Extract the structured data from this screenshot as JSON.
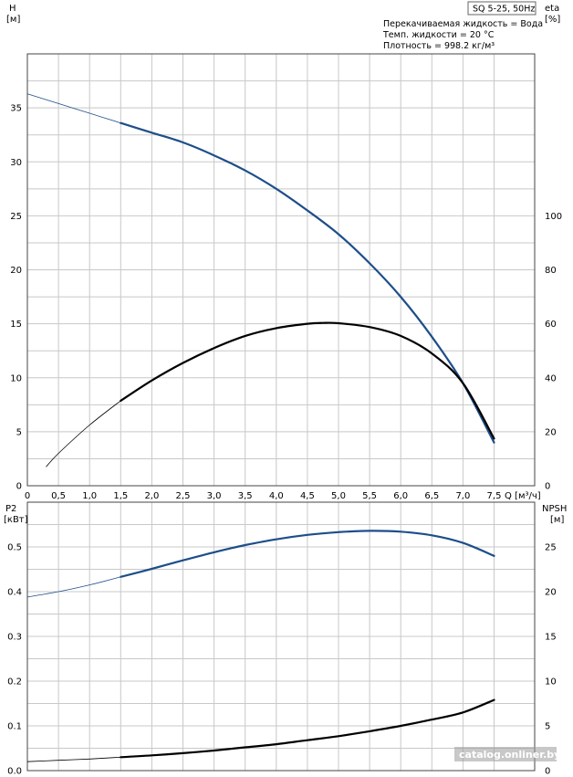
{
  "chart_data": [
    {
      "type": "line",
      "model_label": "SQ 5-25, 50Hz",
      "info_lines": [
        "Перекачиваемая жидкость = Вода",
        "Темп. жидкости = 20 °C",
        "Плотность = 998.2 кг/м³"
      ],
      "x_axis": {
        "title": "Q [м³/ч]",
        "range": [
          0,
          8
        ],
        "tick_labels": [
          "0",
          "0,5",
          "1,0",
          "1,5",
          "2,0",
          "2,5",
          "3,0",
          "3,5",
          "4,0",
          "4,5",
          "5,0",
          "5,5",
          "6,0",
          "6,5",
          "7,0",
          "7,5"
        ]
      },
      "y_axis_left": {
        "title_line1": "H",
        "title_line2": "[м]",
        "range": [
          0,
          40
        ],
        "tick_labels": [
          "0",
          "5",
          "10",
          "15",
          "20",
          "25",
          "30",
          "35"
        ]
      },
      "y_axis_right": {
        "title_line1": "eta",
        "title_line2": "[%]",
        "range": [
          0,
          160
        ],
        "tick_labels": [
          "0",
          "20",
          "40",
          "60",
          "80",
          "100"
        ]
      },
      "series": [
        {
          "axis": "left",
          "color": "#1d4e89",
          "thin_until_x": 1.5,
          "points": [
            [
              0,
              36.3
            ],
            [
              0.5,
              35.4
            ],
            [
              1.0,
              34.5
            ],
            [
              1.5,
              33.6
            ],
            [
              2.0,
              32.7
            ],
            [
              2.5,
              31.8
            ],
            [
              3.0,
              30.6
            ],
            [
              3.5,
              29.2
            ],
            [
              4.0,
              27.5
            ],
            [
              4.5,
              25.5
            ],
            [
              5.0,
              23.3
            ],
            [
              5.5,
              20.6
            ],
            [
              6.0,
              17.5
            ],
            [
              6.5,
              13.8
            ],
            [
              7.0,
              9.5
            ],
            [
              7.5,
              4.0
            ]
          ]
        },
        {
          "axis": "right",
          "color": "#000000",
          "thin_until_x": 1.5,
          "points": [
            [
              0.3,
              7
            ],
            [
              0.5,
              12
            ],
            [
              1.0,
              22.5
            ],
            [
              1.5,
              31.5
            ],
            [
              2.0,
              39
            ],
            [
              2.5,
              45.5
            ],
            [
              3.0,
              51
            ],
            [
              3.5,
              55.5
            ],
            [
              4.0,
              58.4
            ],
            [
              4.5,
              60
            ],
            [
              4.75,
              60.3
            ],
            [
              5.0,
              60.2
            ],
            [
              5.5,
              58.8
            ],
            [
              6.0,
              55.5
            ],
            [
              6.5,
              49
            ],
            [
              7.0,
              38
            ],
            [
              7.5,
              17.5
            ]
          ]
        }
      ]
    },
    {
      "type": "line",
      "x_axis": {
        "range": [
          0,
          8
        ]
      },
      "y_axis_left": {
        "title_line1": "P2",
        "title_line2": "[кВт]",
        "range": [
          0,
          0.6
        ],
        "tick_labels": [
          "0.0",
          "0.1",
          "0.2",
          "0.3",
          "0.4",
          "0.5"
        ]
      },
      "y_axis_right": {
        "title_line1": "NPSH",
        "title_line2": "[м]",
        "range": [
          0,
          30
        ],
        "tick_labels": [
          "0",
          "5",
          "10",
          "15",
          "20",
          "25"
        ]
      },
      "series": [
        {
          "axis": "left",
          "color": "#1d4e89",
          "thin_until_x": 1.5,
          "points": [
            [
              0,
              0.388
            ],
            [
              0.5,
              0.4
            ],
            [
              1.0,
              0.415
            ],
            [
              1.5,
              0.433
            ],
            [
              2.0,
              0.451
            ],
            [
              2.5,
              0.47
            ],
            [
              3.0,
              0.488
            ],
            [
              3.5,
              0.504
            ],
            [
              4.0,
              0.517
            ],
            [
              4.5,
              0.527
            ],
            [
              5.0,
              0.533
            ],
            [
              5.5,
              0.536
            ],
            [
              6.0,
              0.534
            ],
            [
              6.5,
              0.526
            ],
            [
              7.0,
              0.509
            ],
            [
              7.5,
              0.48
            ]
          ]
        },
        {
          "axis": "right",
          "color": "#000000",
          "thin_until_x": 1.5,
          "points": [
            [
              0,
              1.0
            ],
            [
              0.5,
              1.15
            ],
            [
              1.0,
              1.3
            ],
            [
              1.5,
              1.5
            ],
            [
              2.0,
              1.7
            ],
            [
              2.5,
              1.95
            ],
            [
              3.0,
              2.25
            ],
            [
              3.5,
              2.6
            ],
            [
              4.0,
              2.95
            ],
            [
              4.5,
              3.4
            ],
            [
              5.0,
              3.85
            ],
            [
              5.5,
              4.4
            ],
            [
              6.0,
              5.0
            ],
            [
              6.5,
              5.7
            ],
            [
              7.0,
              6.5
            ],
            [
              7.5,
              7.9
            ]
          ]
        }
      ]
    }
  ],
  "watermark": "catalog.onliner.by"
}
